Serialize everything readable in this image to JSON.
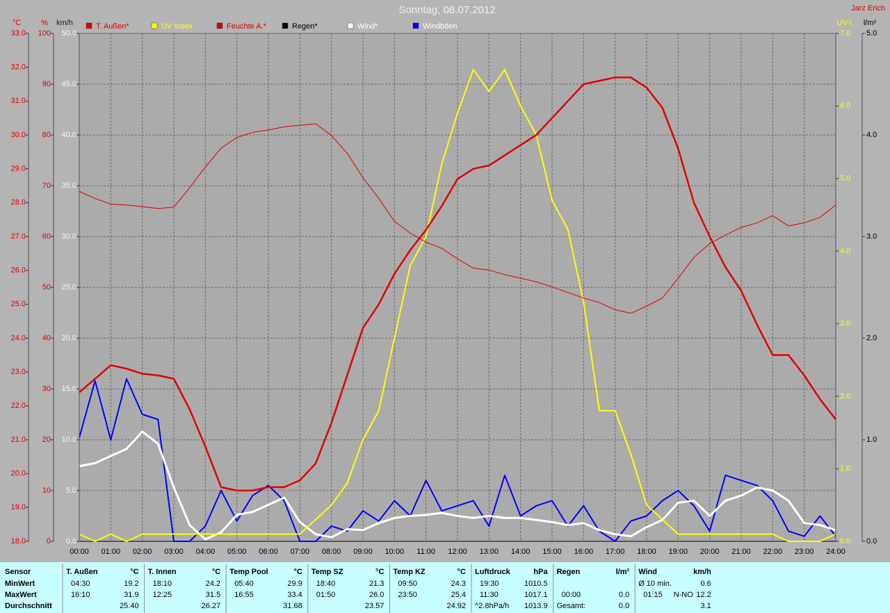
{
  "chart_data": {
    "type": "line",
    "title": "Sonntag, 08.07.2012",
    "author": "Jarz Erich",
    "ylabel": "°C",
    "y2label": "%",
    "y3label": "km/h",
    "y4label": "UV-I",
    "y5label": "l/m²",
    "grid": true,
    "xlim": [
      0,
      24
    ],
    "xticks": [
      {
        "value": 0,
        "label": "00:00"
      },
      {
        "value": 1,
        "label": "01:00"
      },
      {
        "value": 2,
        "label": "02:00"
      },
      {
        "value": 3,
        "label": "03:00"
      },
      {
        "value": 4,
        "label": "04:00"
      },
      {
        "value": 5,
        "label": "05:00"
      },
      {
        "value": 6,
        "label": "06:00"
      },
      {
        "value": 7,
        "label": "07:00"
      },
      {
        "value": 8,
        "label": "08:00"
      },
      {
        "value": 9,
        "label": "09:00"
      },
      {
        "value": 10,
        "label": "10:00"
      },
      {
        "value": 11,
        "label": "11:00"
      },
      {
        "value": 12,
        "label": "12:00"
      },
      {
        "value": 13,
        "label": "13:00"
      },
      {
        "value": 14,
        "label": "14:00"
      },
      {
        "value": 15,
        "label": "15:00"
      },
      {
        "value": 16,
        "label": "16:00"
      },
      {
        "value": 17,
        "label": "17:00"
      },
      {
        "value": 18,
        "label": "18:00"
      },
      {
        "value": 19,
        "label": "19:00"
      },
      {
        "value": 20,
        "label": "20:00"
      },
      {
        "value": 21,
        "label": "21:00"
      },
      {
        "value": 22,
        "label": "22:00"
      },
      {
        "value": 23,
        "label": "23:00"
      },
      {
        "value": 24,
        "label": "24:00"
      }
    ],
    "ylim": [
      18,
      33
    ],
    "yticks": [
      {
        "value": 18,
        "label": "18.0"
      },
      {
        "value": 19,
        "label": "19.0"
      },
      {
        "value": 20,
        "label": "20.0"
      },
      {
        "value": 21,
        "label": "21.0"
      },
      {
        "value": 22,
        "label": "22.0"
      },
      {
        "value": 23,
        "label": "23.0"
      },
      {
        "value": 24,
        "label": "24.0"
      },
      {
        "value": 25,
        "label": "25.0"
      },
      {
        "value": 26,
        "label": "26.0"
      },
      {
        "value": 27,
        "label": "27.0"
      },
      {
        "value": 28,
        "label": "28.0"
      },
      {
        "value": 29,
        "label": "29.0"
      },
      {
        "value": 30,
        "label": "30.0"
      },
      {
        "value": 31,
        "label": "31.0"
      },
      {
        "value": 32,
        "label": "32.0"
      },
      {
        "value": 33,
        "label": "33.0"
      }
    ],
    "y2lim": [
      0,
      100
    ],
    "y2ticks": [
      0,
      10,
      20,
      30,
      40,
      50,
      60,
      70,
      80,
      90,
      100
    ],
    "y3lim": [
      0,
      50
    ],
    "y3ticks": [
      {
        "value": 0,
        "label": "0.0"
      },
      {
        "value": 5,
        "label": "5.0"
      },
      {
        "value": 10,
        "label": "10.0"
      },
      {
        "value": 15,
        "label": "15.0"
      },
      {
        "value": 20,
        "label": "20.0"
      },
      {
        "value": 25,
        "label": "25.0"
      },
      {
        "value": 30,
        "label": "30.0"
      },
      {
        "value": 35,
        "label": "35.0"
      },
      {
        "value": 40,
        "label": "40.0"
      },
      {
        "value": 45,
        "label": "45.0"
      },
      {
        "value": 50,
        "label": "50.0"
      }
    ],
    "y4lim": [
      0,
      7
    ],
    "y4ticks": [
      {
        "value": 0,
        "label": "0.0"
      },
      {
        "value": 1,
        "label": "1.0"
      },
      {
        "value": 2,
        "label": "2.0"
      },
      {
        "value": 3,
        "label": "3.0"
      },
      {
        "value": 4,
        "label": "4.0"
      },
      {
        "value": 5,
        "label": "5.0"
      },
      {
        "value": 6,
        "label": "6.0"
      },
      {
        "value": 7,
        "label": "7.0"
      }
    ],
    "y5lim": [
      0,
      5
    ],
    "y5ticks": [
      {
        "value": 0,
        "label": "0.0"
      },
      {
        "value": 1,
        "label": "1.0"
      },
      {
        "value": 2,
        "label": "2.0"
      },
      {
        "value": 3,
        "label": "3.0"
      },
      {
        "value": 4,
        "label": "4.0"
      },
      {
        "value": 5,
        "label": "5.0"
      }
    ],
    "x": [
      0,
      0.5,
      1,
      1.5,
      2,
      2.5,
      3,
      3.5,
      4,
      4.5,
      5,
      5.5,
      6,
      6.5,
      7,
      7.5,
      8,
      8.5,
      9,
      9.5,
      10,
      10.5,
      11,
      11.5,
      12,
      12.5,
      13,
      13.5,
      14,
      14.5,
      15,
      15.5,
      16,
      16.5,
      17,
      17.5,
      18,
      18.5,
      19,
      19.5,
      20,
      20.5,
      21,
      21.5,
      22,
      22.5,
      23,
      23.5,
      24
    ],
    "series": [
      {
        "name": "T. Außen*",
        "color": "#e00000",
        "label_color": "#e00000",
        "axis": "y",
        "width": 2.5,
        "values": [
          22.4,
          22.8,
          23.2,
          23.1,
          22.95,
          22.9,
          22.8,
          21.9,
          20.8,
          19.6,
          19.5,
          19.5,
          19.6,
          19.6,
          19.8,
          20.3,
          21.5,
          22.9,
          24.3,
          25.0,
          25.9,
          26.6,
          27.2,
          27.9,
          28.7,
          29.0,
          29.1,
          29.4,
          29.7,
          30.0,
          30.5,
          31.0,
          31.5,
          31.6,
          31.7,
          31.7,
          31.4,
          30.8,
          29.6,
          28.0,
          27.0,
          26.1,
          25.4,
          24.4,
          23.5,
          23.5,
          22.9,
          22.2,
          21.6
        ]
      },
      {
        "name": "UV Index",
        "color": "#ffff00",
        "label_color": "#ffff00",
        "axis": "y4",
        "width": 2,
        "values": [
          0.1,
          0,
          0.1,
          0,
          0.1,
          0.1,
          0.1,
          0.1,
          0.1,
          0.1,
          0.1,
          0.1,
          0.1,
          0.1,
          0.1,
          0.3,
          0.5,
          0.8,
          1.4,
          1.8,
          2.8,
          3.8,
          4.2,
          5.2,
          5.9,
          6.5,
          6.2,
          6.5,
          6.0,
          5.6,
          4.7,
          4.3,
          3.3,
          1.8,
          1.8,
          1.2,
          0.5,
          0.3,
          0.1,
          0.1,
          0.1,
          0.1,
          0.1,
          0.1,
          0.1,
          0,
          0,
          0,
          0.1
        ]
      },
      {
        "name": "Feuchte A.*",
        "color": "#e00000",
        "label_color": "#e00000",
        "axis": "y2",
        "width": 1,
        "values": [
          68.9,
          67.5,
          66.4,
          66.2,
          65.9,
          65.5,
          65.8,
          69.6,
          73.7,
          77.4,
          79.5,
          80.5,
          81.0,
          81.6,
          81.9,
          82.2,
          79.9,
          76.4,
          71.6,
          67.5,
          63.0,
          60.7,
          58.9,
          57.7,
          55.6,
          53.8,
          53.4,
          52.5,
          51.8,
          51.1,
          50.1,
          49.0,
          47.9,
          47.0,
          45.6,
          44.9,
          46.3,
          47.9,
          51.8,
          55.9,
          58.6,
          60.3,
          61.8,
          62.7,
          64.1,
          62.1,
          62.7,
          63.8,
          66.2
        ]
      },
      {
        "name": "Regen*",
        "color": "#000000",
        "label_color": "#000000",
        "axis": "y5",
        "width": 1,
        "values": [
          0,
          0,
          0,
          0,
          0,
          0,
          0,
          0,
          0,
          0,
          0,
          0,
          0,
          0,
          0,
          0,
          0,
          0,
          0,
          0,
          0,
          0,
          0,
          0,
          0,
          0,
          0,
          0,
          0,
          0,
          0,
          0,
          0,
          0,
          0,
          0,
          0,
          0,
          0,
          0,
          0,
          0,
          0,
          0,
          0,
          0,
          0,
          0,
          0
        ]
      },
      {
        "name": "Wind*",
        "color": "#ffffff",
        "label_color": "#ffffff",
        "axis": "y3",
        "width": 3,
        "values": [
          7.4,
          7.7,
          8.4,
          9.1,
          10.8,
          9.6,
          5.3,
          1.6,
          0.2,
          0.9,
          2.6,
          2.9,
          3.6,
          4.3,
          1.9,
          0.7,
          0.4,
          1.2,
          1.1,
          1.8,
          2.3,
          2.5,
          2.6,
          2.8,
          2.5,
          2.3,
          2.5,
          2.3,
          2.3,
          2.1,
          1.9,
          1.6,
          1.8,
          1.1,
          0.7,
          0.5,
          1.4,
          2.1,
          3.8,
          4.0,
          2.5,
          4.0,
          4.5,
          5.3,
          5.0,
          4.0,
          1.8,
          1.6,
          1.1
        ]
      },
      {
        "name": "Windböen",
        "color": "#0000ff",
        "label_color": "#ffffff",
        "axis": "y3",
        "width": 2,
        "values": [
          10.2,
          15.8,
          10.0,
          16.0,
          12.5,
          12.0,
          0,
          0,
          1.5,
          5.0,
          2.0,
          4.5,
          5.5,
          4.0,
          0,
          0,
          1.5,
          1.0,
          3.0,
          2.0,
          4.0,
          2.5,
          6.0,
          3.0,
          3.5,
          4.0,
          1.5,
          6.5,
          2.5,
          3.5,
          4.0,
          1.5,
          3.5,
          1.0,
          0,
          2.0,
          2.5,
          4.0,
          5.0,
          3.5,
          1.0,
          6.5,
          6.0,
          5.5,
          4.0,
          1.0,
          0.5,
          2.5,
          0.5
        ]
      }
    ]
  },
  "stats_table": {
    "row_labels": [
      "Sensor",
      "MinWert",
      "MaxWert",
      "Durchschnitt"
    ],
    "columns": [
      {
        "header": "T. Außen",
        "unit": "°C",
        "rows": [
          [
            "04:30",
            "19.2"
          ],
          [
            "16:10",
            "31.9"
          ],
          [
            "25.40"
          ]
        ]
      },
      {
        "header": "T. Innen",
        "unit": "°C",
        "rows": [
          [
            "18:10",
            "24.2"
          ],
          [
            "12:25",
            "31.5"
          ],
          [
            "26.27"
          ]
        ]
      },
      {
        "header": "Temp Pool",
        "unit": "°C",
        "rows": [
          [
            "05:40",
            "29.9"
          ],
          [
            "16:55",
            "33.4"
          ],
          [
            "31.68"
          ]
        ]
      },
      {
        "header": "Temp SZ",
        "unit": "°C",
        "rows": [
          [
            "18:40",
            "21.3"
          ],
          [
            "01:50",
            "26.0"
          ],
          [
            "23.57"
          ]
        ]
      },
      {
        "header": "Temp KZ",
        "unit": "°C",
        "rows": [
          [
            "09:50",
            "24.3"
          ],
          [
            "23:50",
            "25.4"
          ],
          [
            "24.92"
          ]
        ]
      },
      {
        "header": "Luftdruck",
        "unit": "hPa",
        "rows": [
          [
            "19:30",
            "1010.5"
          ],
          [
            "11:30",
            "1017.1"
          ],
          [
            "^2.8hPa/h",
            "1013.9"
          ]
        ]
      },
      {
        "header": "Regen",
        "unit": "l/m²",
        "rows": [
          [],
          [
            "00:00",
            "0.0"
          ],
          [
            "Gesamt:",
            "0.0"
          ]
        ]
      },
      {
        "header": "Wind",
        "unit": "km/h",
        "rows": [
          [
            "Ø 10 min.",
            "0.6"
          ],
          [
            "01:15",
            "N-NO",
            "12.2"
          ],
          [
            "3.1"
          ]
        ]
      }
    ]
  }
}
